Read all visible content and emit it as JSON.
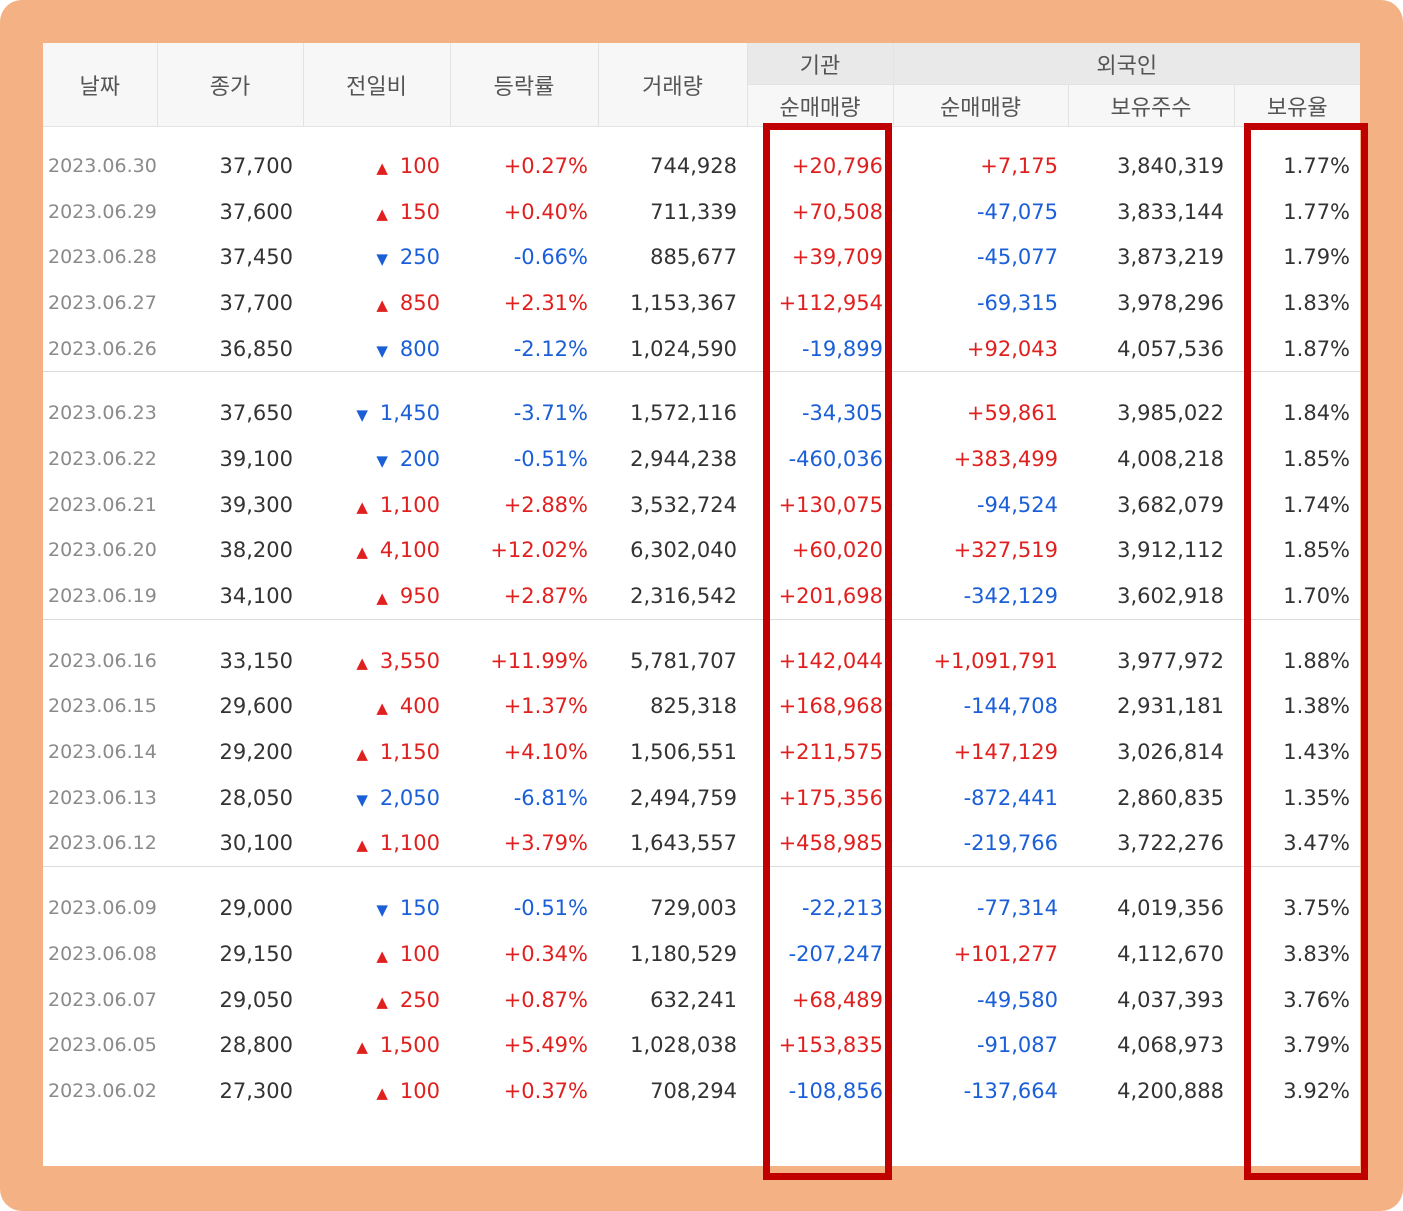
{
  "table": {
    "headers": {
      "date": "날짜",
      "close": "종가",
      "change": "전일비",
      "rate": "등락률",
      "volume": "거래량",
      "institution_group": "기관",
      "institution_net": "순매매량",
      "foreign_group": "외국인",
      "foreign_net": "순매매량",
      "foreign_shares": "보유주수",
      "foreign_ratio": "보유율"
    },
    "groups": [
      {
        "rows": [
          {
            "date": "2023.06.30",
            "close": "37,700",
            "dir": "up",
            "arrow": "▲",
            "change": "100",
            "rate": "+0.27%",
            "volume": "744,928",
            "inst": "+20,796",
            "foreign_net": "+7,175",
            "shares": "3,840,319",
            "ratio": "1.77%"
          },
          {
            "date": "2023.06.29",
            "close": "37,600",
            "dir": "up",
            "arrow": "▲",
            "change": "150",
            "rate": "+0.40%",
            "volume": "711,339",
            "inst": "+70,508",
            "foreign_net": "-47,075",
            "shares": "3,833,144",
            "ratio": "1.77%"
          },
          {
            "date": "2023.06.28",
            "close": "37,450",
            "dir": "down",
            "arrow": "▼",
            "change": "250",
            "rate": "-0.66%",
            "volume": "885,677",
            "inst": "+39,709",
            "foreign_net": "-45,077",
            "shares": "3,873,219",
            "ratio": "1.79%"
          },
          {
            "date": "2023.06.27",
            "close": "37,700",
            "dir": "up",
            "arrow": "▲",
            "change": "850",
            "rate": "+2.31%",
            "volume": "1,153,367",
            "inst": "+112,954",
            "foreign_net": "-69,315",
            "shares": "3,978,296",
            "ratio": "1.83%"
          },
          {
            "date": "2023.06.26",
            "close": "36,850",
            "dir": "down",
            "arrow": "▼",
            "change": "800",
            "rate": "-2.12%",
            "volume": "1,024,590",
            "inst": "-19,899",
            "foreign_net": "+92,043",
            "shares": "4,057,536",
            "ratio": "1.87%"
          }
        ]
      },
      {
        "rows": [
          {
            "date": "2023.06.23",
            "close": "37,650",
            "dir": "down",
            "arrow": "▼",
            "change": "1,450",
            "rate": "-3.71%",
            "volume": "1,572,116",
            "inst": "-34,305",
            "foreign_net": "+59,861",
            "shares": "3,985,022",
            "ratio": "1.84%"
          },
          {
            "date": "2023.06.22",
            "close": "39,100",
            "dir": "down",
            "arrow": "▼",
            "change": "200",
            "rate": "-0.51%",
            "volume": "2,944,238",
            "inst": "-460,036",
            "foreign_net": "+383,499",
            "shares": "4,008,218",
            "ratio": "1.85%"
          },
          {
            "date": "2023.06.21",
            "close": "39,300",
            "dir": "up",
            "arrow": "▲",
            "change": "1,100",
            "rate": "+2.88%",
            "volume": "3,532,724",
            "inst": "+130,075",
            "foreign_net": "-94,524",
            "shares": "3,682,079",
            "ratio": "1.74%"
          },
          {
            "date": "2023.06.20",
            "close": "38,200",
            "dir": "up",
            "arrow": "▲",
            "change": "4,100",
            "rate": "+12.02%",
            "volume": "6,302,040",
            "inst": "+60,020",
            "foreign_net": "+327,519",
            "shares": "3,912,112",
            "ratio": "1.85%"
          },
          {
            "date": "2023.06.19",
            "close": "34,100",
            "dir": "up",
            "arrow": "▲",
            "change": "950",
            "rate": "+2.87%",
            "volume": "2,316,542",
            "inst": "+201,698",
            "foreign_net": "-342,129",
            "shares": "3,602,918",
            "ratio": "1.70%"
          }
        ]
      },
      {
        "rows": [
          {
            "date": "2023.06.16",
            "close": "33,150",
            "dir": "up",
            "arrow": "▲",
            "change": "3,550",
            "rate": "+11.99%",
            "volume": "5,781,707",
            "inst": "+142,044",
            "foreign_net": "+1,091,791",
            "shares": "3,977,972",
            "ratio": "1.88%"
          },
          {
            "date": "2023.06.15",
            "close": "29,600",
            "dir": "up",
            "arrow": "▲",
            "change": "400",
            "rate": "+1.37%",
            "volume": "825,318",
            "inst": "+168,968",
            "foreign_net": "-144,708",
            "shares": "2,931,181",
            "ratio": "1.38%"
          },
          {
            "date": "2023.06.14",
            "close": "29,200",
            "dir": "up",
            "arrow": "▲",
            "change": "1,150",
            "rate": "+4.10%",
            "volume": "1,506,551",
            "inst": "+211,575",
            "foreign_net": "+147,129",
            "shares": "3,026,814",
            "ratio": "1.43%"
          },
          {
            "date": "2023.06.13",
            "close": "28,050",
            "dir": "down",
            "arrow": "▼",
            "change": "2,050",
            "rate": "-6.81%",
            "volume": "2,494,759",
            "inst": "+175,356",
            "foreign_net": "-872,441",
            "shares": "2,860,835",
            "ratio": "1.35%"
          },
          {
            "date": "2023.06.12",
            "close": "30,100",
            "dir": "up",
            "arrow": "▲",
            "change": "1,100",
            "rate": "+3.79%",
            "volume": "1,643,557",
            "inst": "+458,985",
            "foreign_net": "-219,766",
            "shares": "3,722,276",
            "ratio": "3.47%"
          }
        ]
      },
      {
        "rows": [
          {
            "date": "2023.06.09",
            "close": "29,000",
            "dir": "down",
            "arrow": "▼",
            "change": "150",
            "rate": "-0.51%",
            "volume": "729,003",
            "inst": "-22,213",
            "foreign_net": "-77,314",
            "shares": "4,019,356",
            "ratio": "3.75%"
          },
          {
            "date": "2023.06.08",
            "close": "29,150",
            "dir": "up",
            "arrow": "▲",
            "change": "100",
            "rate": "+0.34%",
            "volume": "1,180,529",
            "inst": "-207,247",
            "foreign_net": "+101,277",
            "shares": "4,112,670",
            "ratio": "3.83%"
          },
          {
            "date": "2023.06.07",
            "close": "29,050",
            "dir": "up",
            "arrow": "▲",
            "change": "250",
            "rate": "+0.87%",
            "volume": "632,241",
            "inst": "+68,489",
            "foreign_net": "-49,580",
            "shares": "4,037,393",
            "ratio": "3.76%"
          },
          {
            "date": "2023.06.05",
            "close": "28,800",
            "dir": "up",
            "arrow": "▲",
            "change": "1,500",
            "rate": "+5.49%",
            "volume": "1,028,038",
            "inst": "+153,835",
            "foreign_net": "-91,087",
            "shares": "4,068,973",
            "ratio": "3.79%"
          },
          {
            "date": "2023.06.02",
            "close": "27,300",
            "dir": "up",
            "arrow": "▲",
            "change": "100",
            "rate": "+0.37%",
            "volume": "708,294",
            "inst": "-108,856",
            "foreign_net": "-137,664",
            "shares": "4,200,888",
            "ratio": "3.92%"
          }
        ]
      }
    ]
  },
  "colors": {
    "frame": "#f4b183",
    "highlight": "#c00000",
    "up": "#e0201f",
    "down": "#1a5fd8"
  }
}
